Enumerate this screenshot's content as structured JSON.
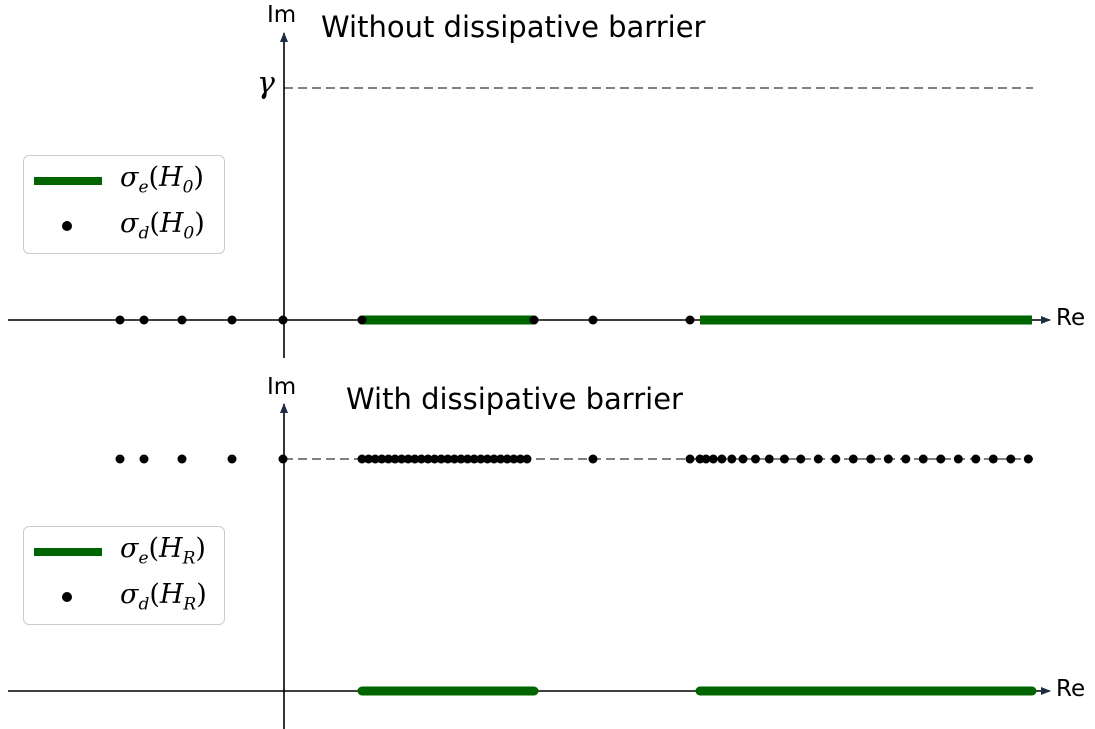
{
  "figure": {
    "axis_labels": {
      "im": "Im",
      "re": "Re",
      "gamma": "γ"
    },
    "top_panel": {
      "title": "Without dissipative barrier",
      "legend": {
        "essential": {
          "sigma": "σ",
          "sub": "e",
          "op": "H",
          "op_sub": "0"
        },
        "discrete": {
          "sigma": "σ",
          "sub": "d",
          "op": "H",
          "op_sub": "0"
        }
      }
    },
    "bottom_panel": {
      "title": "With dissipative barrier",
      "legend": {
        "essential": {
          "sigma": "σ",
          "sub": "e",
          "op": "H",
          "op_sub": "R"
        },
        "discrete": {
          "sigma": "σ",
          "sub": "d",
          "op": "H",
          "op_sub": "R"
        }
      }
    },
    "colors": {
      "essential_spectrum": "#006400",
      "discrete_spectrum": "#000000",
      "gamma_line": "#808080",
      "axes": "#000000"
    }
  }
}
